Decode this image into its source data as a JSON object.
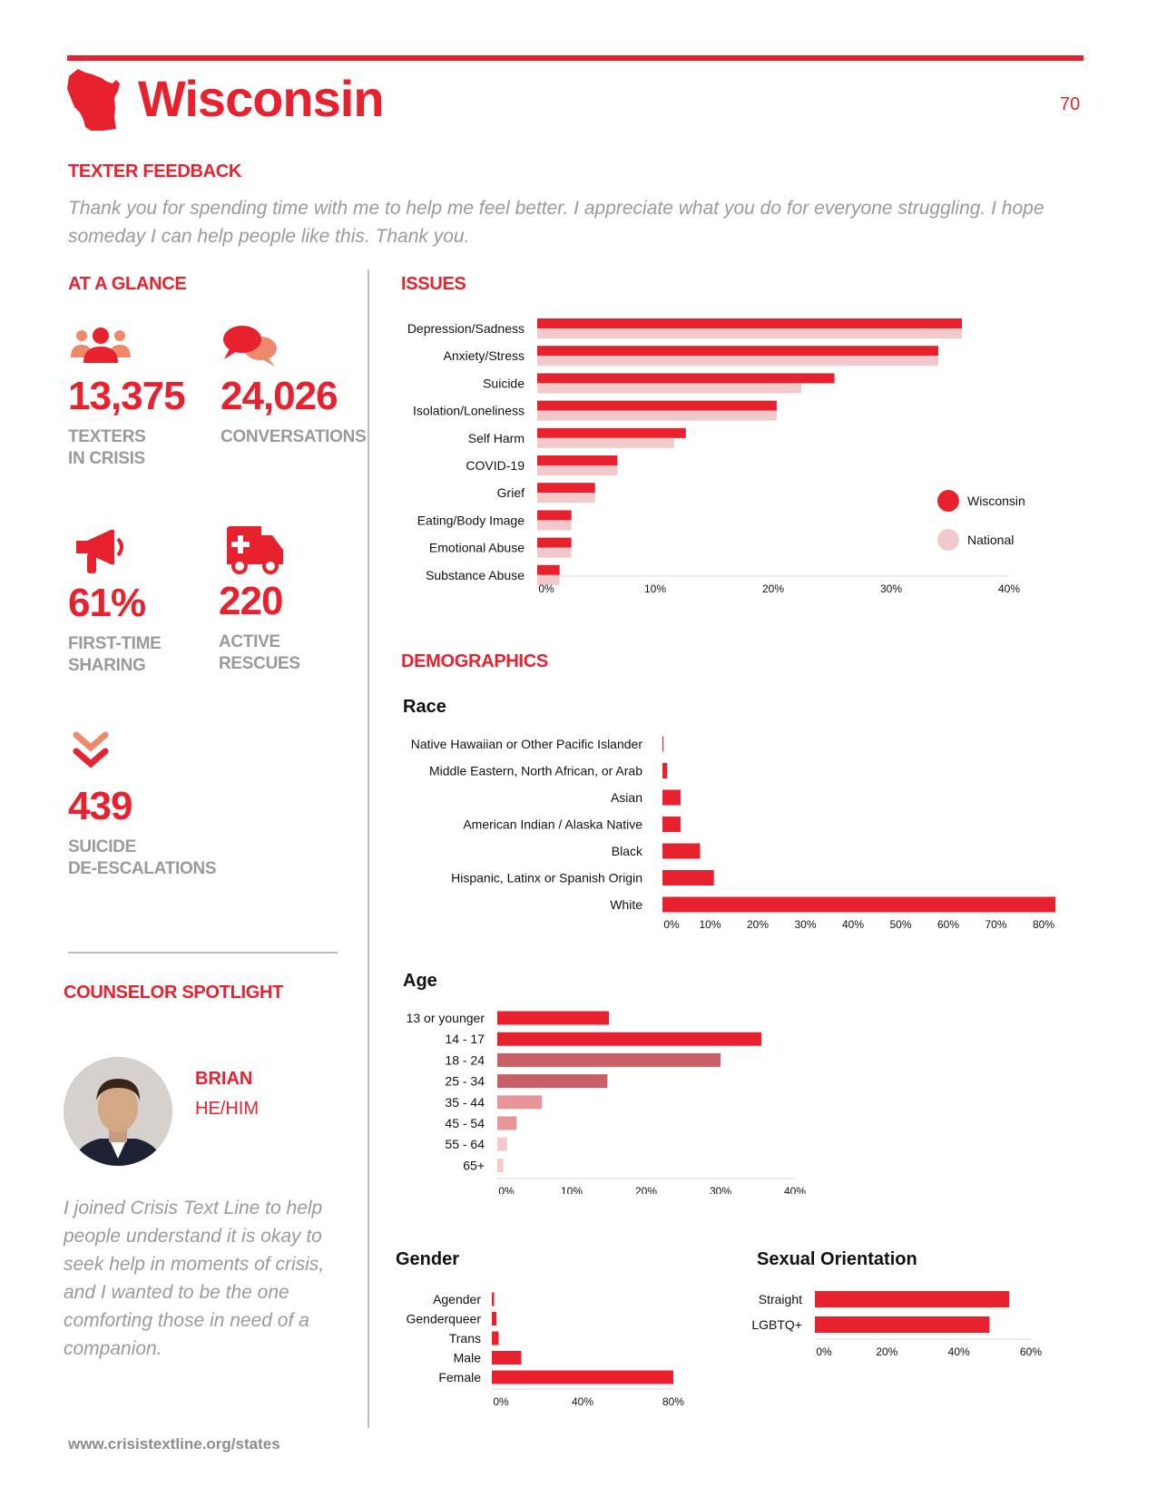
{
  "header": {
    "title": "Wisconsin",
    "page_number": "70",
    "state_icon": "wisconsin-map-icon"
  },
  "feedback": {
    "heading": "TEXTER FEEDBACK",
    "quote": "Thank you for spending time with me to help me feel better. I appreciate what you do for everyone struggling. I hope someday I can help people like this. Thank you."
  },
  "glance": {
    "heading": "AT A GLANCE",
    "stats": [
      {
        "icon": "people-icon",
        "value": "13,375",
        "label": "TEXTERS\nIN CRISIS"
      },
      {
        "icon": "chat-bubbles-icon",
        "value": "24,026",
        "label": "CONVERSATIONS"
      },
      {
        "icon": "megaphone-icon",
        "value": "61%",
        "label": "FIRST-TIME\nSHARING"
      },
      {
        "icon": "ambulance-icon",
        "value": "220",
        "label": "ACTIVE\nRESCUES"
      },
      {
        "icon": "double-chevron-down-icon",
        "value": "439",
        "label": "SUICIDE\nDE-ESCALATIONS"
      }
    ]
  },
  "spotlight": {
    "heading": "COUNSELOR SPOTLIGHT",
    "name": "BRIAN",
    "pronouns": "HE/HIM",
    "quote": "I joined Crisis Text Line to help people understand it is okay to seek help in moments of crisis, and I wanted to be the one comforting those in need of a companion."
  },
  "issues_heading": "ISSUES",
  "demographics_heading": "DEMOGRAPHICS",
  "footer": "www.crisistextline.org/states",
  "colors": {
    "accent": "#e8212e",
    "national": "#f2c9cb",
    "gray_text": "#9a9a9a"
  },
  "chart_data": [
    {
      "id": "issues",
      "type": "bar",
      "orientation": "horizontal",
      "title": "",
      "categories": [
        "Depression/Sadness",
        "Anxiety/Stress",
        "Suicide",
        "Isolation/Loneliness",
        "Self Harm",
        "COVID-19",
        "Grief",
        "Eating/Body Image",
        "Emotional Abuse",
        "Substance Abuse"
      ],
      "series": [
        {
          "name": "Wisconsin",
          "color": "#e8212e",
          "values": [
            36,
            34,
            25.2,
            20.3,
            12.6,
            6.8,
            4.9,
            2.9,
            2.9,
            1.9
          ]
        },
        {
          "name": "National",
          "color": "#f2c9cb",
          "values": [
            36,
            34,
            22.4,
            20.3,
            11.6,
            6.8,
            4.9,
            2.9,
            2.9,
            1.9
          ]
        }
      ],
      "xlim": [
        0,
        40
      ],
      "xticks": [
        "0%",
        "10%",
        "20%",
        "30%",
        "40%"
      ],
      "legend": "right"
    },
    {
      "id": "race",
      "type": "bar",
      "orientation": "horizontal",
      "title": "Race",
      "categories": [
        "Native Hawaiian or Other Pacific Islander",
        "Middle Eastern, North African, or Arab",
        "Asian",
        "American Indian / Alaska Native",
        "Black",
        "Hispanic, Latinx or Spanish Origin",
        "White"
      ],
      "values": [
        0.2,
        1,
        3.8,
        3.8,
        7.9,
        10.8,
        82.5
      ],
      "color": "#e8212e",
      "xlim": [
        0,
        80
      ],
      "xticks": [
        "0%",
        "10%",
        "20%",
        "30%",
        "40%",
        "50%",
        "60%",
        "70%",
        "80%"
      ]
    },
    {
      "id": "age",
      "type": "bar",
      "orientation": "horizontal",
      "title": "Age",
      "categories": [
        "13 or younger",
        "14 - 17",
        "18 - 24",
        "25 - 34",
        "35 - 44",
        "45 - 54",
        "55 - 64",
        "65+"
      ],
      "values": [
        15,
        35.5,
        30,
        14.8,
        6,
        2.6,
        1.3,
        0.8
      ],
      "colors": [
        "#e8212e",
        "#e8212e",
        "#c96066",
        "#c96066",
        "#e8959a",
        "#e8959a",
        "#f2c9cb",
        "#f2c9cb"
      ],
      "xlim": [
        0,
        40
      ],
      "xticks": [
        "0%",
        "10%",
        "20%",
        "30%",
        "40%"
      ]
    },
    {
      "id": "gender",
      "type": "bar",
      "orientation": "horizontal",
      "title": "Gender",
      "categories": [
        "Agender",
        "Genderqueer",
        "Trans",
        "Male",
        "Female"
      ],
      "values": [
        1,
        2,
        3,
        13,
        80
      ],
      "color": "#e8212e",
      "xlim": [
        0,
        80
      ],
      "xticks": [
        "0%",
        "40%",
        "80%"
      ]
    },
    {
      "id": "orientation",
      "type": "bar",
      "orientation": "horizontal",
      "title": "Sexual Orientation",
      "categories": [
        "Straight",
        "LGBTQ+"
      ],
      "values": [
        54,
        48.5
      ],
      "color": "#e8212e",
      "xlim": [
        0,
        60
      ],
      "xticks": [
        "0%",
        "20%",
        "40%",
        "60%"
      ]
    }
  ]
}
